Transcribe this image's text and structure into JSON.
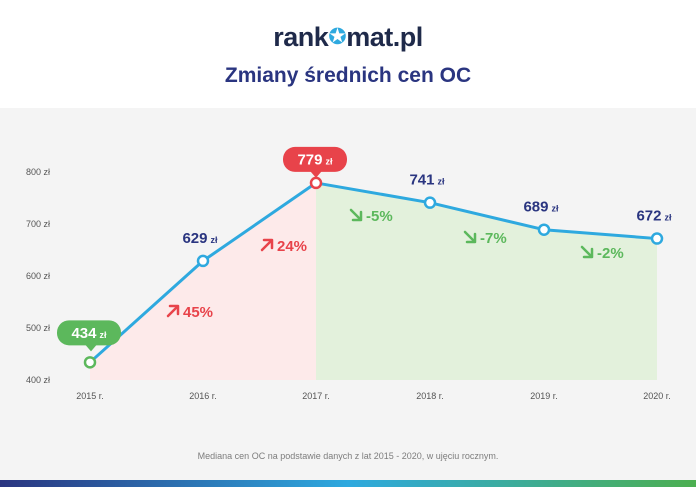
{
  "brand": {
    "name_part1": "rank",
    "name_part2": "mat.pl",
    "star_icon": "star-icon",
    "star_color": "#2ea9df"
  },
  "title": "Zmiany średnich cen OC",
  "footnote": "Mediana cen OC na podstawie danych z lat 2015 - 2020, w ujęciu rocznym.",
  "colors": {
    "line": "#2ea9df",
    "increase": "#e8434a",
    "decrease": "#5cb85c",
    "increase_fill": "#fdeaea",
    "decrease_fill": "#e3f1dc",
    "label_dark": "#2a3580",
    "axis_text": "#555555"
  },
  "chart_data": {
    "type": "line",
    "title": "Zmiany średnich cen OC",
    "x": [
      "2015 r.",
      "2016 r.",
      "2017 r.",
      "2018 r.",
      "2019 r.",
      "2020 r."
    ],
    "values": [
      434,
      629,
      779,
      741,
      689,
      672
    ],
    "value_labels": [
      "434",
      "629",
      "779",
      "741",
      "689",
      "672"
    ],
    "unit": "zł",
    "highlight": {
      "min_index": 0,
      "max_index": 2
    },
    "ylim": [
      400,
      800
    ],
    "yticks": [
      400,
      500,
      600,
      700,
      800
    ],
    "ytick_labels": [
      "400 zł",
      "500 zł",
      "600 zł",
      "700 zł",
      "800 zł"
    ],
    "changes": [
      {
        "label": "45%",
        "direction": "up"
      },
      {
        "label": "24%",
        "direction": "up"
      },
      {
        "label": "-5%",
        "direction": "down"
      },
      {
        "label": "-7%",
        "direction": "down"
      },
      {
        "label": "-2%",
        "direction": "down"
      }
    ],
    "grid": false,
    "shaded_regions": [
      {
        "from_index": 0,
        "to_index": 2,
        "kind": "increase"
      },
      {
        "from_index": 2,
        "to_index": 5,
        "kind": "decrease"
      }
    ]
  }
}
